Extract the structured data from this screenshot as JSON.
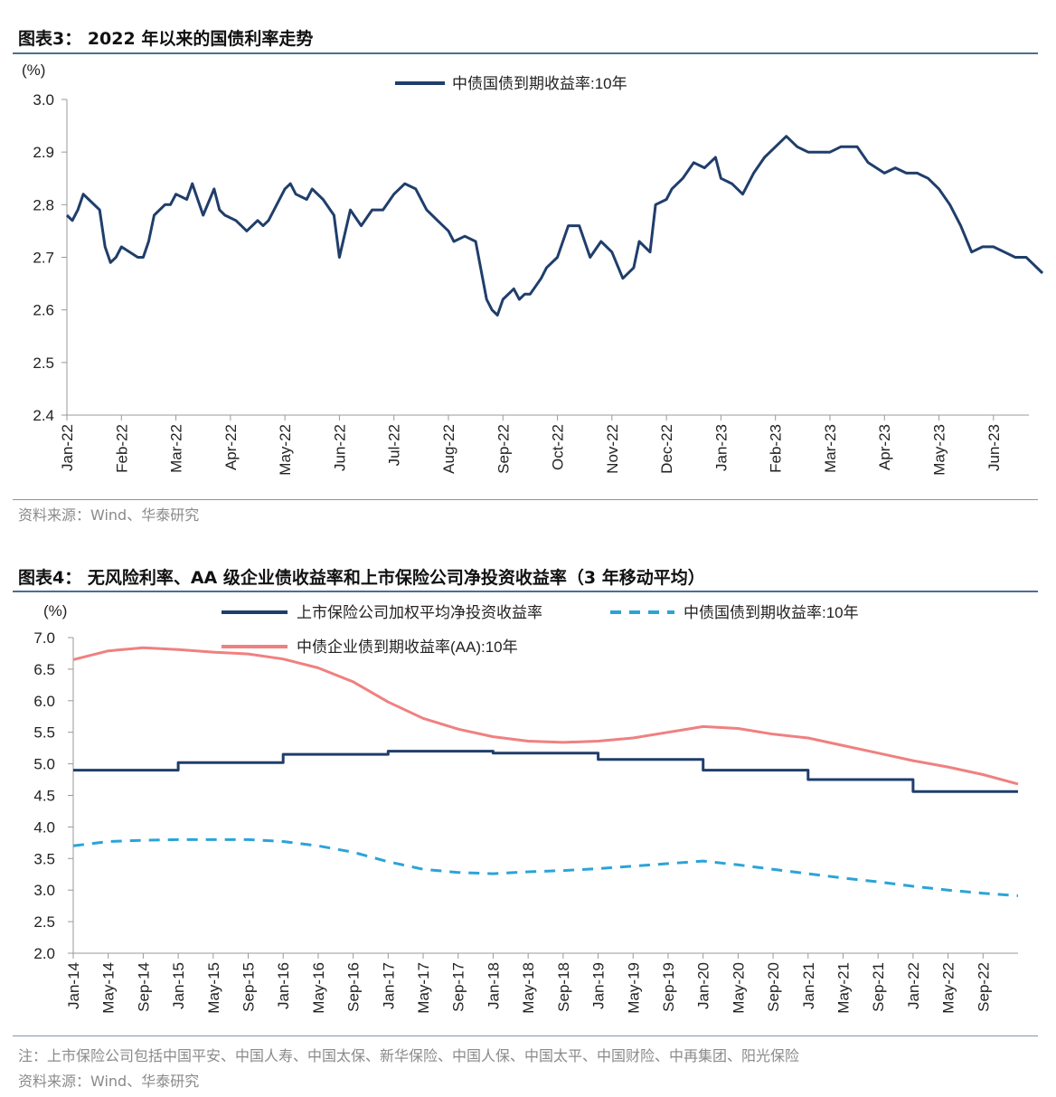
{
  "fig3": {
    "title": "图表3： 2022 年以来的国债利率走势",
    "source": "资料来源：Wind、华泰研究"
  },
  "fig4": {
    "title": "图表4： 无风险利率、AA 级企业债收益率和上市保险公司净投资收益率（3 年移动平均）",
    "note": "注：上市保险公司包括中国平安、中国人寿、中国太保、新华保险、中国人保、中国太平、中国财险、中再集团、阳光保险",
    "source": "资料来源：Wind、华泰研究"
  },
  "chart_data": [
    {
      "type": "line",
      "title": "2022 年以来的国债利率走势",
      "unit_label": "(%)",
      "ylim": [
        2.4,
        3.0
      ],
      "yticks": [
        "3.0",
        "2.9",
        "2.8",
        "2.7",
        "2.6",
        "2.5",
        "2.4"
      ],
      "xticks": [
        "Jan-22",
        "Feb-22",
        "Mar-22",
        "Apr-22",
        "May-22",
        "Jun-22",
        "Jul-22",
        "Aug-22",
        "Sep-22",
        "Oct-22",
        "Nov-22",
        "Dec-22",
        "Jan-23",
        "Feb-23",
        "Mar-23",
        "Apr-23",
        "May-23",
        "Jun-23"
      ],
      "legend_position": "top-center",
      "grid": false,
      "series": [
        {
          "name": "中债国债到期收益率:10年",
          "color": "#1f3e6b",
          "x_months": [
            0.0,
            0.1,
            0.2,
            0.3,
            0.4,
            0.6,
            0.7,
            0.8,
            0.9,
            1.0,
            1.3,
            1.4,
            1.5,
            1.6,
            1.8,
            1.9,
            2.0,
            2.2,
            2.3,
            2.5,
            2.7,
            2.8,
            2.9,
            3.1,
            3.2,
            3.3,
            3.5,
            3.6,
            3.7,
            3.8,
            4.0,
            4.1,
            4.2,
            4.4,
            4.5,
            4.7,
            4.9,
            5.0,
            5.2,
            5.4,
            5.6,
            5.8,
            6.0,
            6.2,
            6.4,
            6.6,
            6.8,
            7.0,
            7.1,
            7.3,
            7.5,
            7.7,
            7.8,
            7.9,
            8.0,
            8.2,
            8.3,
            8.4,
            8.5,
            8.7,
            8.8,
            9.0,
            9.2,
            9.4,
            9.5,
            9.6,
            9.8,
            10.0,
            10.2,
            10.4,
            10.5,
            10.7,
            10.8,
            11.0,
            11.1,
            11.3,
            11.5,
            11.7,
            11.9,
            12.0,
            12.2,
            12.4,
            12.6,
            12.8,
            13.0,
            13.2,
            13.4,
            13.6,
            13.8,
            14.0,
            14.2,
            14.5,
            14.7,
            15.0,
            15.2,
            15.4,
            15.6,
            15.8,
            16.0,
            16.2,
            16.4,
            16.6,
            16.8,
            17.0,
            17.2,
            17.4,
            17.6,
            17.9
          ],
          "values": [
            2.78,
            2.77,
            2.79,
            2.82,
            2.81,
            2.79,
            2.72,
            2.69,
            2.7,
            2.72,
            2.7,
            2.7,
            2.73,
            2.78,
            2.8,
            2.8,
            2.82,
            2.81,
            2.84,
            2.78,
            2.83,
            2.79,
            2.78,
            2.77,
            2.76,
            2.75,
            2.77,
            2.76,
            2.77,
            2.79,
            2.83,
            2.84,
            2.82,
            2.81,
            2.83,
            2.81,
            2.78,
            2.7,
            2.79,
            2.76,
            2.79,
            2.79,
            2.82,
            2.84,
            2.83,
            2.79,
            2.77,
            2.75,
            2.73,
            2.74,
            2.73,
            2.62,
            2.6,
            2.59,
            2.62,
            2.64,
            2.62,
            2.63,
            2.63,
            2.66,
            2.68,
            2.7,
            2.76,
            2.76,
            2.73,
            2.7,
            2.73,
            2.71,
            2.66,
            2.68,
            2.73,
            2.71,
            2.8,
            2.81,
            2.83,
            2.85,
            2.88,
            2.87,
            2.89,
            2.85,
            2.84,
            2.82,
            2.86,
            2.89,
            2.91,
            2.93,
            2.91,
            2.9,
            2.9,
            2.9,
            2.91,
            2.91,
            2.88,
            2.86,
            2.87,
            2.86,
            2.86,
            2.85,
            2.83,
            2.8,
            2.76,
            2.71,
            2.72,
            2.72,
            2.71,
            2.7,
            2.7,
            2.67
          ]
        }
      ]
    },
    {
      "type": "line",
      "title": "无风险利率、AA 级企业债收益率和上市保险公司净投资收益率（3 年移动平均）",
      "unit_label": "(%)",
      "ylim": [
        2.0,
        7.0
      ],
      "yticks": [
        "7.0",
        "6.5",
        "6.0",
        "5.5",
        "5.0",
        "4.5",
        "4.0",
        "3.5",
        "3.0",
        "2.5",
        "2.0"
      ],
      "xticks": [
        "Jan-14",
        "May-14",
        "Sep-14",
        "Jan-15",
        "May-15",
        "Sep-15",
        "Jan-16",
        "May-16",
        "Sep-16",
        "Jan-17",
        "May-17",
        "Sep-17",
        "Jan-18",
        "May-18",
        "Sep-18",
        "Jan-19",
        "May-19",
        "Sep-19",
        "Jan-20",
        "May-20",
        "Sep-20",
        "Jan-21",
        "May-21",
        "Sep-21",
        "Jan-22",
        "May-22",
        "Sep-22"
      ],
      "legend_position": "top",
      "grid": false,
      "series": [
        {
          "name": "上市保险公司加权平均净投资收益率",
          "color": "#1f3e6b",
          "style": "solid",
          "x_years": [
            2014,
            2015,
            2016,
            2017,
            2018,
            2019,
            2020,
            2021,
            2022
          ],
          "values": [
            4.9,
            5.02,
            5.15,
            5.2,
            5.17,
            5.07,
            4.9,
            4.75,
            4.56
          ]
        },
        {
          "name": "中债国债到期收益率:10年",
          "color": "#2aa4d8",
          "style": "dashed",
          "x_months": [
            0,
            4,
            8,
            12,
            16,
            20,
            24,
            28,
            32,
            36,
            40,
            44,
            48,
            52,
            56,
            60,
            64,
            68,
            72,
            76,
            80,
            84,
            88,
            92,
            96,
            100,
            104,
            108
          ],
          "values": [
            3.7,
            3.77,
            3.79,
            3.8,
            3.8,
            3.8,
            3.77,
            3.7,
            3.6,
            3.45,
            3.33,
            3.28,
            3.26,
            3.29,
            3.31,
            3.34,
            3.38,
            3.42,
            3.46,
            3.4,
            3.33,
            3.26,
            3.19,
            3.13,
            3.06,
            3.0,
            2.95,
            2.91
          ]
        },
        {
          "name": "中债企业债到期收益率(AA):10年",
          "color": "#f08080",
          "style": "solid",
          "x_months": [
            0,
            4,
            8,
            12,
            16,
            20,
            24,
            28,
            32,
            36,
            40,
            44,
            48,
            52,
            56,
            60,
            64,
            68,
            72,
            76,
            80,
            84,
            88,
            92,
            96,
            100,
            104,
            108
          ],
          "values": [
            6.65,
            6.79,
            6.84,
            6.81,
            6.77,
            6.74,
            6.66,
            6.52,
            6.3,
            5.98,
            5.72,
            5.55,
            5.43,
            5.36,
            5.34,
            5.36,
            5.41,
            5.5,
            5.59,
            5.56,
            5.47,
            5.41,
            5.29,
            5.17,
            5.05,
            4.95,
            4.83,
            4.68
          ]
        }
      ]
    }
  ]
}
